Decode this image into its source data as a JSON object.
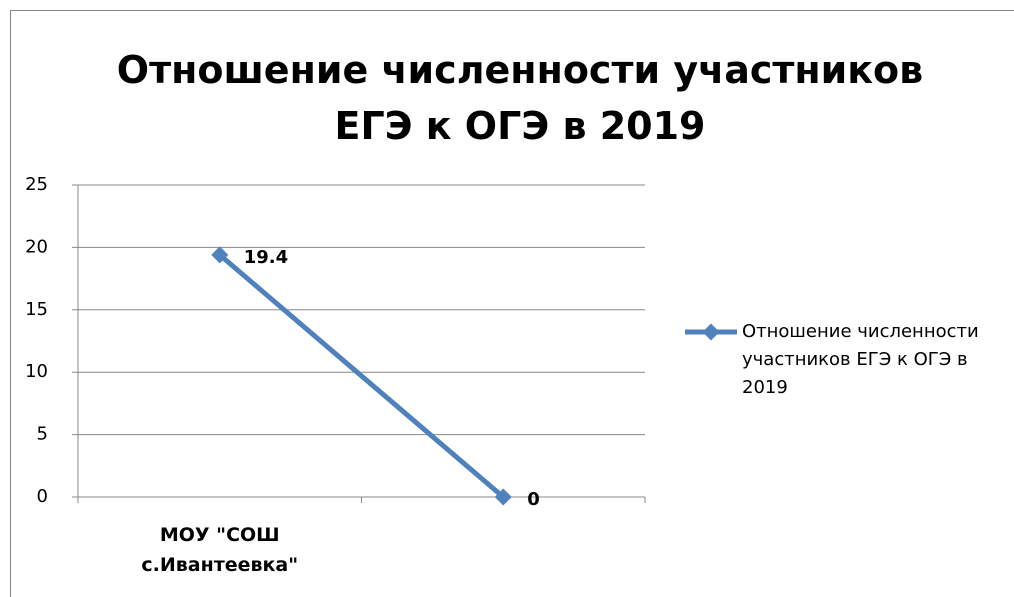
{
  "chart_data": {
    "type": "line",
    "title": "Отношение численности участников ЕГЭ к ОГЭ в 2019",
    "categories": [
      "МОУ \"СОШ с.Ивантеевка\"",
      null
    ],
    "series": [
      {
        "name": "Отношение численности участников ЕГЭ к ОГЭ в 2019",
        "color": "#4f81bd",
        "values": [
          19.4,
          0
        ]
      }
    ],
    "ylim": [
      0,
      25
    ],
    "yticks": [
      0,
      5,
      10,
      15,
      20,
      25
    ],
    "grid": true,
    "legend": "right"
  }
}
